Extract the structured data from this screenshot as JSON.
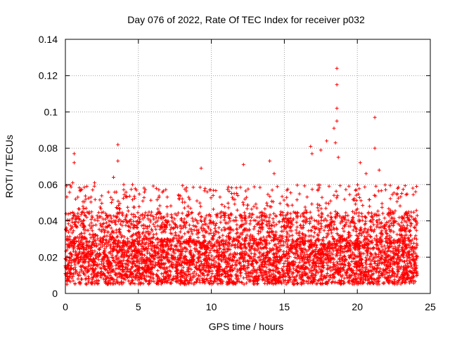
{
  "chart_data": {
    "type": "scatter",
    "title": "Day 076 of 2022, Rate Of TEC Index for receiver p032",
    "xlabel": "GPS time / hours",
    "ylabel": "ROTI / TECUs",
    "xlim": [
      0,
      25
    ],
    "ylim": [
      0,
      0.14
    ],
    "xticks": [
      0,
      5,
      10,
      15,
      20,
      25
    ],
    "xtick_labels": [
      "0",
      "5",
      "10",
      "15",
      "20",
      "25"
    ],
    "yticks": [
      0,
      0.02,
      0.04,
      0.06,
      0.08,
      0.1,
      0.12,
      0.14
    ],
    "ytick_labels": [
      "0",
      "0.02",
      "0.04",
      "0.06",
      "0.08",
      "0.1",
      "0.12",
      "0.14"
    ],
    "grid": true,
    "marker": "+",
    "marker_color": "#ff0000",
    "series": [
      {
        "name": "ROTI",
        "notable_points": [
          {
            "x": 0.6,
            "y": 0.077
          },
          {
            "x": 0.6,
            "y": 0.072
          },
          {
            "x": 0.5,
            "y": 0.061
          },
          {
            "x": 2.0,
            "y": 0.061
          },
          {
            "x": 3.6,
            "y": 0.082
          },
          {
            "x": 3.6,
            "y": 0.073
          },
          {
            "x": 3.3,
            "y": 0.064
          },
          {
            "x": 4.0,
            "y": 0.06
          },
          {
            "x": 4.6,
            "y": 0.06
          },
          {
            "x": 9.3,
            "y": 0.069
          },
          {
            "x": 9.9,
            "y": 0.057
          },
          {
            "x": 12.2,
            "y": 0.071
          },
          {
            "x": 14.0,
            "y": 0.073
          },
          {
            "x": 14.3,
            "y": 0.066
          },
          {
            "x": 16.8,
            "y": 0.081
          },
          {
            "x": 16.9,
            "y": 0.077
          },
          {
            "x": 17.5,
            "y": 0.079
          },
          {
            "x": 17.9,
            "y": 0.084
          },
          {
            "x": 18.4,
            "y": 0.091
          },
          {
            "x": 18.6,
            "y": 0.124
          },
          {
            "x": 18.6,
            "y": 0.115
          },
          {
            "x": 18.6,
            "y": 0.102
          },
          {
            "x": 18.6,
            "y": 0.095
          },
          {
            "x": 18.5,
            "y": 0.083
          },
          {
            "x": 18.7,
            "y": 0.075
          },
          {
            "x": 20.2,
            "y": 0.072
          },
          {
            "x": 20.6,
            "y": 0.066
          },
          {
            "x": 21.2,
            "y": 0.097
          },
          {
            "x": 21.2,
            "y": 0.08
          },
          {
            "x": 21.5,
            "y": 0.068
          },
          {
            "x": 23.8,
            "y": 0.058
          }
        ],
        "baseline_range": [
          0.005,
          0.03
        ],
        "typical_peak": 0.045
      }
    ]
  }
}
